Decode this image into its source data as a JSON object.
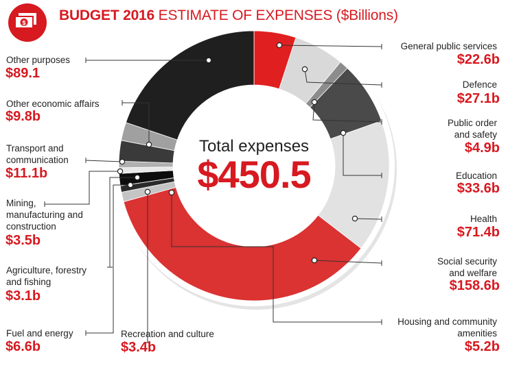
{
  "title": {
    "bold": "BUDGET 2016",
    "rest": "ESTIMATE OF EXPENSES ($Billions)"
  },
  "center": {
    "label": "Total expenses",
    "value": "$450.5"
  },
  "icon": "money-icon",
  "colors": {
    "accent": "#d71920"
  },
  "chart_data": {
    "type": "pie",
    "donut": true,
    "total": 450.5,
    "slices": [
      {
        "label": "General public services",
        "value": 22.6,
        "display": "$22.6b",
        "color": "#e02020"
      },
      {
        "label": "Defence",
        "value": 27.1,
        "display": "$27.1b",
        "color": "#d9d9d9"
      },
      {
        "label": "Public order\nand safety",
        "value": 4.9,
        "display": "$4.9b",
        "color": "#8c8c8c"
      },
      {
        "label": "Education",
        "value": 33.6,
        "display": "$33.6b",
        "color": "#4a4a4a"
      },
      {
        "label": "Health",
        "value": 71.4,
        "display": "$71.4b",
        "color": "#e2e2e2"
      },
      {
        "label": "Social security\nand welfare",
        "value": 158.6,
        "display": "$158.6b",
        "color": "#db3232"
      },
      {
        "label": "Housing and community\namenities",
        "value": 5.2,
        "display": "$5.2b",
        "color": "#c4c4c4"
      },
      {
        "label": "Recreation and culture",
        "value": 3.4,
        "display": "$3.4b",
        "color": "#2a2a2a"
      },
      {
        "label": "Fuel and energy",
        "value": 6.6,
        "display": "$6.6b",
        "color": "#0d0d0d"
      },
      {
        "label": "Agriculture, forestry\nand fishing",
        "value": 3.1,
        "display": "$3.1b",
        "color": "#e8e8e8"
      },
      {
        "label": "Mining,\nmanufacturing and\nconstruction",
        "value": 3.5,
        "display": "$3.5b",
        "color": "#b0b0b0"
      },
      {
        "label": "Transport and\ncommunication",
        "value": 11.1,
        "display": "$11.1b",
        "color": "#3a3a3a"
      },
      {
        "label": "Other economic affairs",
        "value": 9.8,
        "display": "$9.8b",
        "color": "#a0a0a0"
      },
      {
        "label": "Other purposes",
        "value": 89.1,
        "display": "$89.1",
        "color": "#1f1f1f"
      }
    ]
  }
}
